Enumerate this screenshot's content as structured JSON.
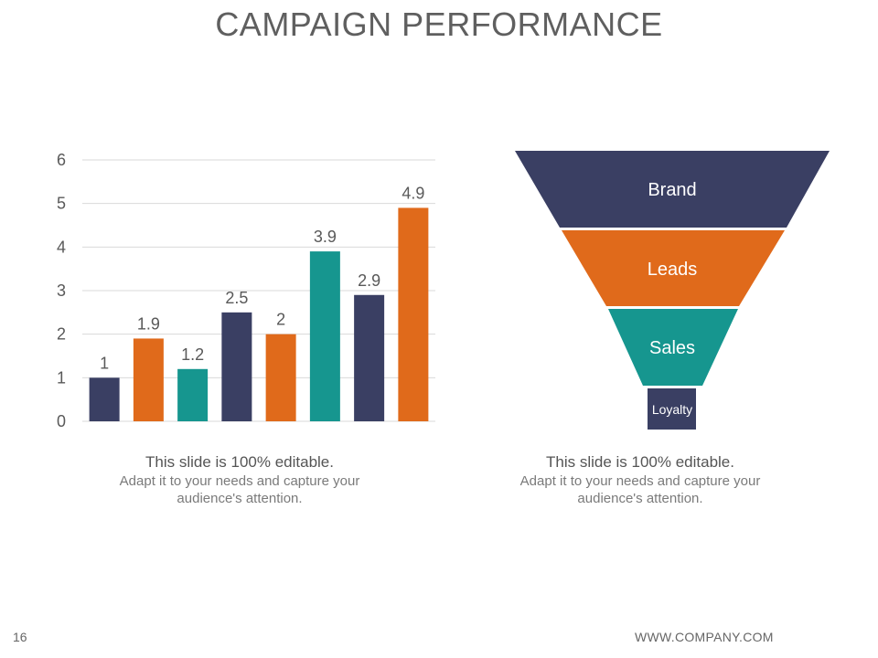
{
  "slide": {
    "title": "CAMPAIGN PERFORMANCE",
    "page_number": "16",
    "footer_url": "WWW.COMPANY.COM"
  },
  "colors": {
    "navy": "#3a3f63",
    "orange": "#e06a1b",
    "teal": "#16968f",
    "title_gray": "#5f5f5f",
    "grid": "#d9d9d9"
  },
  "chart_data": {
    "type": "bar",
    "values": [
      1,
      1.9,
      1.2,
      2.5,
      2,
      3.9,
      2.9,
      4.9
    ],
    "bar_colors": [
      "#3a3f63",
      "#e06a1b",
      "#16968f",
      "#3a3f63",
      "#e06a1b",
      "#16968f",
      "#3a3f63",
      "#e06a1b"
    ],
    "data_labels": [
      "1",
      "1.9",
      "1.2",
      "2.5",
      "2",
      "3.9",
      "2.9",
      "4.9"
    ],
    "y_ticks": [
      "0",
      "1",
      "2",
      "3",
      "4",
      "5",
      "6"
    ],
    "ylim": [
      0,
      6
    ],
    "grid": true,
    "legend": "none"
  },
  "funnel": {
    "stages": [
      {
        "label": "Brand",
        "color": "#3a3f63"
      },
      {
        "label": "Leads",
        "color": "#e06a1b"
      },
      {
        "label": "Sales",
        "color": "#16968f"
      },
      {
        "label": "Loyalty",
        "color": "#3a3f63"
      }
    ]
  },
  "captions": {
    "left": {
      "heading": "This slide is 100% editable.",
      "body": "Adapt it to your needs and capture your audience's attention."
    },
    "right": {
      "heading": "This slide is 100% editable.",
      "body": "Adapt it to your needs and capture your audience's attention."
    }
  }
}
